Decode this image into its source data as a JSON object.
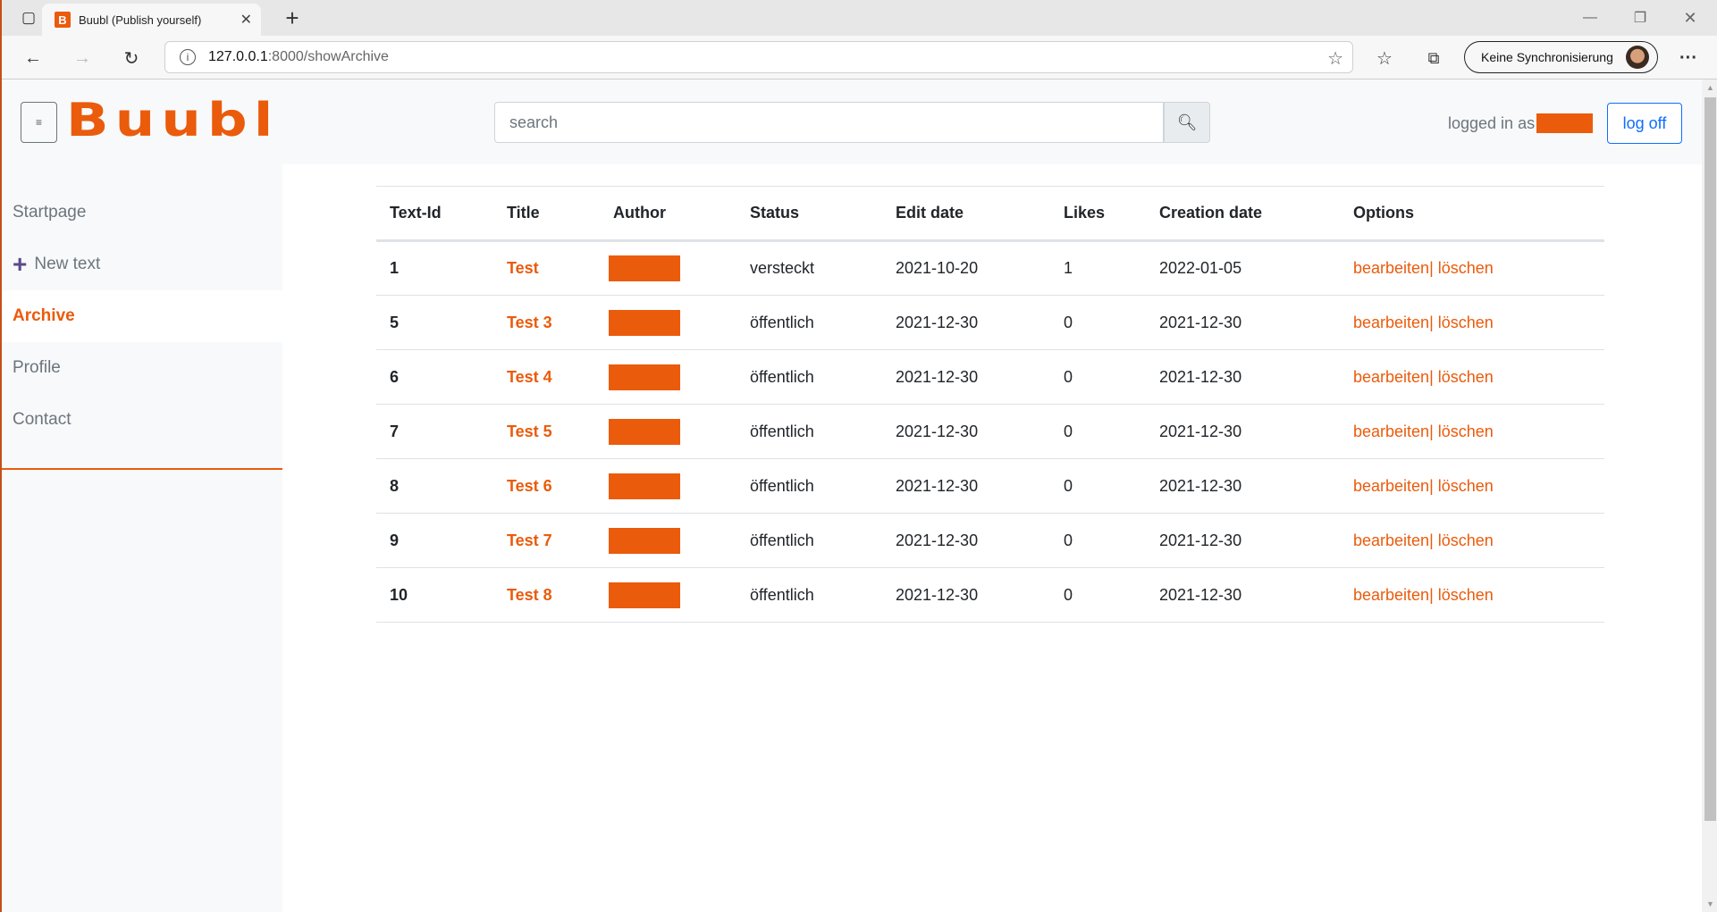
{
  "browser": {
    "tab_title": "Buubl (Publish yourself)",
    "url_host": "127.0.0.1",
    "url_rest": ":8000/showArchive",
    "profile_label": "Keine Synchronisierung"
  },
  "header": {
    "logo": "Buubl",
    "menu_icon": "≡",
    "search_placeholder": "search",
    "logged_in_label": "logged in as",
    "logoff_label": "log off"
  },
  "sidebar": {
    "items": [
      {
        "label": "Startpage"
      },
      {
        "label": "New text",
        "icon": "plus-icon"
      },
      {
        "label": "Archive",
        "active": true
      },
      {
        "label": "Profile"
      },
      {
        "label": "Contact"
      }
    ]
  },
  "colors": {
    "accent": "#ea5b0c",
    "link_blue": "#0d6efd"
  },
  "table": {
    "headers": [
      "Text-Id",
      "Title",
      "Author",
      "Status",
      "Edit date",
      "Likes",
      "Creation date",
      "Options"
    ],
    "edit_label": "bearbeiten|",
    "delete_label": "löschen",
    "rows": [
      {
        "id": "1",
        "title": "Test",
        "status": "versteckt",
        "edit_date": "2021-10-20",
        "likes": "1",
        "creation_date": "2022-01-05"
      },
      {
        "id": "5",
        "title": "Test 3",
        "status": "öffentlich",
        "edit_date": "2021-12-30",
        "likes": "0",
        "creation_date": "2021-12-30"
      },
      {
        "id": "6",
        "title": "Test 4",
        "status": "öffentlich",
        "edit_date": "2021-12-30",
        "likes": "0",
        "creation_date": "2021-12-30"
      },
      {
        "id": "7",
        "title": "Test 5",
        "status": "öffentlich",
        "edit_date": "2021-12-30",
        "likes": "0",
        "creation_date": "2021-12-30"
      },
      {
        "id": "8",
        "title": "Test 6",
        "status": "öffentlich",
        "edit_date": "2021-12-30",
        "likes": "0",
        "creation_date": "2021-12-30"
      },
      {
        "id": "9",
        "title": "Test 7",
        "status": "öffentlich",
        "edit_date": "2021-12-30",
        "likes": "0",
        "creation_date": "2021-12-30"
      },
      {
        "id": "10",
        "title": "Test 8",
        "status": "öffentlich",
        "edit_date": "2021-12-30",
        "likes": "0",
        "creation_date": "2021-12-30"
      }
    ]
  }
}
